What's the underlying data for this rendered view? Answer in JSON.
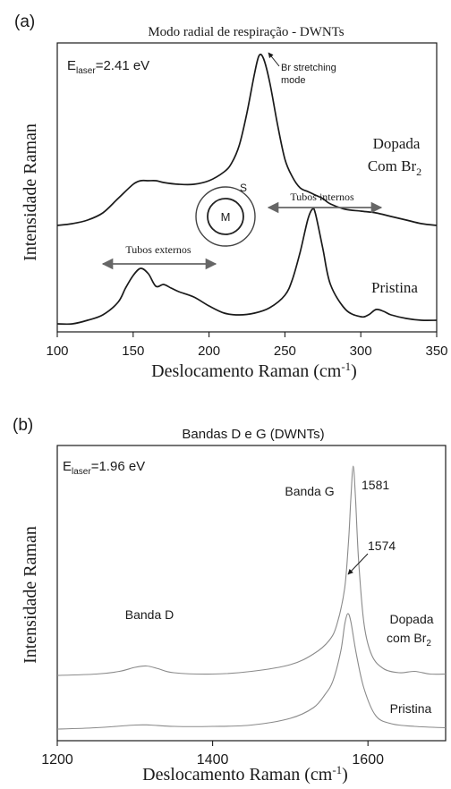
{
  "colors": {
    "ink": "#1a1a1a",
    "arrow_gray": "#666666",
    "light_curve": "#8a8a8a"
  },
  "chart_data": [
    {
      "panel_label": "(a)",
      "type": "line",
      "title": "Modo radial de respiração - DWNTs",
      "xlabel": "Deslocamento Raman (cm-1)",
      "ylabel": "Intensidade Raman",
      "xlim": [
        100,
        350
      ],
      "x_ticks": [
        100,
        150,
        200,
        250,
        300,
        350
      ],
      "y_ticks_shown": false,
      "grid": false,
      "legend": "none",
      "laser_energy": {
        "sub": "laser",
        "value": "=2.41 eV"
      },
      "series": [
        {
          "name": "Dopada Com Br2",
          "x": [
            100,
            110,
            120,
            130,
            140,
            150,
            155,
            160,
            165,
            170,
            180,
            190,
            200,
            210,
            215,
            220,
            225,
            230,
            233,
            236,
            240,
            245,
            250,
            255,
            260,
            265,
            270,
            275,
            280,
            290,
            300,
            310,
            320,
            330,
            340,
            350
          ],
          "y": [
            0.55,
            0.56,
            0.58,
            0.62,
            0.7,
            0.78,
            0.8,
            0.8,
            0.8,
            0.79,
            0.78,
            0.78,
            0.8,
            0.85,
            0.9,
            1.0,
            1.18,
            1.4,
            1.5,
            1.48,
            1.35,
            1.12,
            0.92,
            0.82,
            0.76,
            0.74,
            0.72,
            0.7,
            0.67,
            0.64,
            0.63,
            0.62,
            0.6,
            0.58,
            0.56,
            0.55
          ]
        },
        {
          "name": "Pristina",
          "x": [
            100,
            110,
            120,
            130,
            140,
            145,
            150,
            155,
            160,
            165,
            170,
            175,
            180,
            190,
            200,
            210,
            220,
            230,
            240,
            250,
            255,
            260,
            265,
            268,
            270,
            275,
            280,
            290,
            300,
            305,
            310,
            315,
            320,
            330,
            340,
            350
          ],
          "y": [
            0.0,
            0.0,
            0.02,
            0.05,
            0.12,
            0.2,
            0.27,
            0.31,
            0.28,
            0.21,
            0.22,
            0.2,
            0.18,
            0.15,
            0.1,
            0.06,
            0.05,
            0.06,
            0.09,
            0.16,
            0.25,
            0.4,
            0.58,
            0.64,
            0.62,
            0.42,
            0.22,
            0.08,
            0.04,
            0.05,
            0.08,
            0.07,
            0.05,
            0.03,
            0.02,
            0.02
          ]
        }
      ],
      "annotations": {
        "br_mode": "Br stretching\nmode",
        "series_dopada_line1": "Dopada",
        "series_dopada_line2": "Com Br",
        "series_dopada_sub": "2",
        "series_pristina": "Pristina",
        "internal_tubes": "Tubos internos",
        "external_tubes": "Tubos externos",
        "tube_inner": "M",
        "tube_outer": "S"
      }
    },
    {
      "panel_label": "(b)",
      "type": "line",
      "title": "Bandas D e G (DWNTs)",
      "xlabel": "Deslocamento Raman (cm-1)",
      "ylabel": "Intensidade Raman",
      "xlim": [
        1200,
        1700
      ],
      "x_ticks": [
        1200,
        1400,
        1600
      ],
      "y_ticks_shown": false,
      "grid": false,
      "legend": "none",
      "laser_energy": {
        "sub": "laser",
        "value": "=1.96 eV"
      },
      "series": [
        {
          "name": "Dopada com Br2",
          "x": [
            1200,
            1250,
            1280,
            1300,
            1315,
            1330,
            1350,
            1400,
            1450,
            1500,
            1530,
            1550,
            1560,
            1570,
            1575,
            1578,
            1581,
            1584,
            1588,
            1595,
            1605,
            1620,
            1640,
            1660,
            1680,
            1700
          ],
          "y": [
            0.4,
            0.41,
            0.43,
            0.46,
            0.47,
            0.45,
            0.42,
            0.41,
            0.43,
            0.48,
            0.56,
            0.66,
            0.78,
            1.05,
            1.4,
            1.72,
            1.96,
            1.72,
            1.25,
            0.78,
            0.55,
            0.45,
            0.42,
            0.43,
            0.41,
            0.41
          ]
        },
        {
          "name": "Pristina",
          "x": [
            1200,
            1250,
            1300,
            1320,
            1350,
            1400,
            1450,
            1500,
            1530,
            1545,
            1555,
            1565,
            1570,
            1574,
            1578,
            1585,
            1595,
            1610,
            1630,
            1660,
            1700
          ],
          "y": [
            0.0,
            0.01,
            0.03,
            0.03,
            0.02,
            0.02,
            0.03,
            0.08,
            0.16,
            0.26,
            0.36,
            0.58,
            0.78,
            0.86,
            0.8,
            0.56,
            0.3,
            0.1,
            0.04,
            0.02,
            0.01
          ]
        }
      ],
      "annotations": {
        "band_d": "Banda D",
        "band_g": "Banda G",
        "peak_1581": "1581",
        "peak_1574": "1574",
        "series_dopada_line1": "Dopada",
        "series_dopada_line2": "com Br",
        "series_dopada_sub": "2",
        "series_pristina": "Pristina"
      }
    }
  ]
}
